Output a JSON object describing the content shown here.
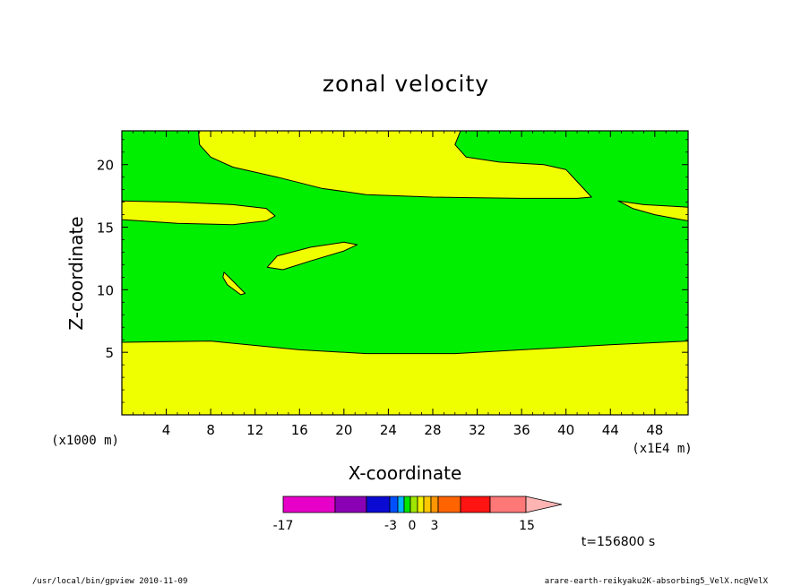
{
  "chart_data": {
    "type": "heatmap",
    "title": "zonal velocity",
    "xlabel": "X-coordinate",
    "ylabel": "Z-coordinate",
    "x_unit": "(x1E4 m)",
    "y_unit": "(x1000 m)",
    "xlim": [
      0,
      51
    ],
    "ylim": [
      0,
      22.7
    ],
    "x_ticks": [
      "4",
      "8",
      "12",
      "16",
      "20",
      "24",
      "28",
      "32",
      "36",
      "40",
      "44",
      "48"
    ],
    "y_ticks": [
      "5",
      "10",
      "15",
      "20"
    ],
    "background_value_color": "#00ef00",
    "regions": [
      {
        "name": "upper-left-band",
        "color": "#f0ff00",
        "points": [
          [
            6.9,
            22.7
          ],
          [
            7.0,
            21.6
          ],
          [
            8,
            20.6
          ],
          [
            10,
            19.8
          ],
          [
            14,
            19.0
          ],
          [
            18,
            18.1
          ],
          [
            22,
            17.6
          ],
          [
            28,
            17.4
          ],
          [
            36,
            17.3
          ],
          [
            41,
            17.3
          ],
          [
            42.3,
            17.4
          ],
          [
            40,
            19.6
          ],
          [
            38,
            20.0
          ],
          [
            34,
            20.2
          ],
          [
            31,
            20.6
          ],
          [
            30,
            21.6
          ],
          [
            30.5,
            22.7
          ]
        ]
      },
      {
        "name": "left-lobe",
        "color": "#f0ff00",
        "points": [
          [
            0,
            17.1
          ],
          [
            5,
            17.0
          ],
          [
            10,
            16.8
          ],
          [
            13.0,
            16.5
          ],
          [
            13.8,
            15.9
          ],
          [
            13,
            15.5
          ],
          [
            10,
            15.2
          ],
          [
            5,
            15.3
          ],
          [
            0,
            15.6
          ]
        ]
      },
      {
        "name": "right-lobe",
        "color": "#f0ff00",
        "points": [
          [
            44.7,
            17.1
          ],
          [
            47,
            16.8
          ],
          [
            51,
            16.6
          ],
          [
            51,
            15.5
          ],
          [
            48,
            16.0
          ],
          [
            46,
            16.5
          ]
        ]
      },
      {
        "name": "small-lens",
        "color": "#f0ff00",
        "points": [
          [
            13.1,
            11.8
          ],
          [
            14,
            12.7
          ],
          [
            17,
            13.4
          ],
          [
            20,
            13.8
          ],
          [
            21.2,
            13.6
          ],
          [
            20,
            13.1
          ],
          [
            17,
            12.3
          ],
          [
            14.5,
            11.6
          ]
        ]
      },
      {
        "name": "tiny-island",
        "color": "#f0ff00",
        "points": [
          [
            9.2,
            11.4
          ],
          [
            10,
            10.7
          ],
          [
            11.1,
            9.7
          ],
          [
            10.7,
            9.6
          ],
          [
            9.5,
            10.4
          ],
          [
            9.1,
            11.0
          ]
        ]
      },
      {
        "name": "lower-band",
        "color": "#f0ff00",
        "points": [
          [
            0,
            0
          ],
          [
            51,
            0
          ],
          [
            51,
            5.9
          ],
          [
            44,
            5.6
          ],
          [
            36,
            5.2
          ],
          [
            30,
            4.9
          ],
          [
            22,
            4.9
          ],
          [
            16,
            5.2
          ],
          [
            8,
            5.9
          ],
          [
            0,
            5.8
          ]
        ]
      }
    ],
    "colorbar": {
      "colors": [
        "#e600c8",
        "#8a00b4",
        "#0a0ad2",
        "#0050ff",
        "#00b4ff",
        "#00e600",
        "#a0e600",
        "#f0f000",
        "#ffc800",
        "#ff9600",
        "#ff6400",
        "#ff1414",
        "#ff7878",
        "#ffb4b4"
      ],
      "tick_labels": [
        "-17",
        "-3",
        "0",
        "3",
        "15"
      ]
    },
    "time_label": "t=156800 s"
  },
  "footer": {
    "left": "/usr/local/bin/gpview  2010-11-09",
    "right": "arare-earth-reikyaku2K-absorbing5_VelX.nc@VelX"
  }
}
